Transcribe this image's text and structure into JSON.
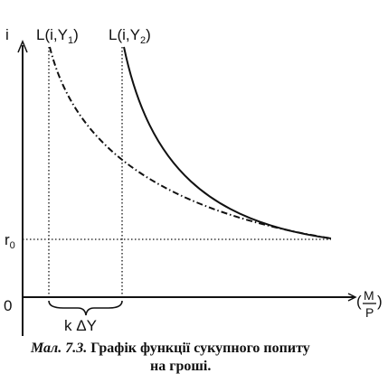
{
  "diagram": {
    "y_axis_label": "i",
    "origin_label": "0",
    "r0_label": "r",
    "r0_subscript": "0",
    "curve1_label_prefix": "L(i,Y",
    "curve1_subscript": "1",
    "curve1_label_suffix": ")",
    "curve2_label_prefix": "L(i,Y",
    "curve2_subscript": "2",
    "curve2_label_suffix": ")",
    "brace_label": "k ΔY",
    "x_axis_numerator": "M",
    "x_axis_denominator": "P",
    "x_axis_left_paren": "(",
    "x_axis_right_paren": ")"
  },
  "caption": {
    "figure_ref": "Мал. 7.3.",
    "line1_text": " Графік функції сукупного попиту",
    "line2_text": "на гроші."
  },
  "colors": {
    "ink": "#111111",
    "background": "#ffffff"
  }
}
